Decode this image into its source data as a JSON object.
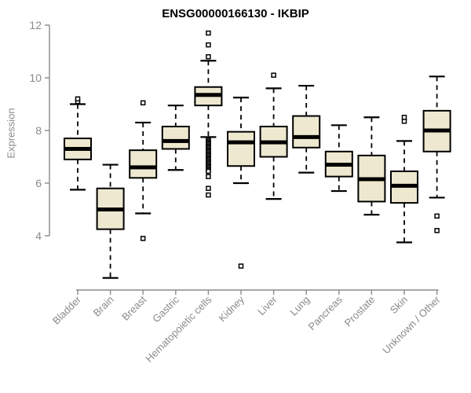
{
  "colors": {
    "box_fill": "#EDE8CF",
    "box_stroke": "#000000",
    "median": "#000000",
    "whisker": "#000000",
    "outlier_stroke": "#000000",
    "outlier_fill": "#ffffff",
    "axis": "#8a8a8a",
    "axis_text": "#8a8a8a",
    "title_text": "#000000"
  },
  "chart_data": {
    "type": "boxplot",
    "title": "ENSG00000166130 - IKBIP",
    "xlabel": "",
    "ylabel": "Expression",
    "ylim": [
      4,
      12
    ],
    "y_ticks": [
      4,
      6,
      8,
      10,
      12
    ],
    "grid": false,
    "categories": [
      "Bladder",
      "Brain",
      "Breast",
      "Gastric",
      "Hematopoietic cells",
      "Kidney",
      "Liver",
      "Lung",
      "Pancreas",
      "Prostate",
      "Skin",
      "Unknown / Other"
    ],
    "boxes": [
      {
        "category": "Bladder",
        "whisker_low": 5.75,
        "q1": 6.9,
        "median": 7.3,
        "q3": 7.7,
        "whisker_high": 9.0,
        "outliers": [
          9.1,
          9.2
        ]
      },
      {
        "category": "Brain",
        "whisker_low": 2.4,
        "q1": 4.25,
        "median": 5.0,
        "q3": 5.8,
        "whisker_high": 6.7,
        "outliers": []
      },
      {
        "category": "Breast",
        "whisker_low": 4.85,
        "q1": 6.2,
        "median": 6.6,
        "q3": 7.25,
        "whisker_high": 8.3,
        "outliers": [
          9.05,
          3.9
        ]
      },
      {
        "category": "Gastric",
        "whisker_low": 6.5,
        "q1": 7.3,
        "median": 7.6,
        "q3": 8.15,
        "whisker_high": 8.95,
        "outliers": []
      },
      {
        "category": "Hematopoietic cells",
        "whisker_low": 7.75,
        "q1": 8.95,
        "median": 9.35,
        "q3": 9.65,
        "whisker_high": 10.65,
        "outliers": [
          11.7,
          11.25,
          10.8,
          7.65,
          7.6,
          7.55,
          7.5,
          7.45,
          7.4,
          7.35,
          7.3,
          7.25,
          7.2,
          7.15,
          7.1,
          7.05,
          7.0,
          6.95,
          6.9,
          6.85,
          6.8,
          6.75,
          6.7,
          6.65,
          6.6,
          6.55,
          6.5,
          6.45,
          6.25,
          5.8,
          5.55
        ]
      },
      {
        "category": "Kidney",
        "whisker_low": 6.0,
        "q1": 6.65,
        "median": 7.55,
        "q3": 7.95,
        "whisker_high": 9.25,
        "outliers": [
          2.85
        ]
      },
      {
        "category": "Liver",
        "whisker_low": 5.4,
        "q1": 7.0,
        "median": 7.55,
        "q3": 8.15,
        "whisker_high": 9.6,
        "outliers": [
          10.1
        ]
      },
      {
        "category": "Lung",
        "whisker_low": 6.4,
        "q1": 7.35,
        "median": 7.75,
        "q3": 8.55,
        "whisker_high": 9.7,
        "outliers": []
      },
      {
        "category": "Pancreas",
        "whisker_low": 5.7,
        "q1": 6.25,
        "median": 6.7,
        "q3": 7.2,
        "whisker_high": 8.2,
        "outliers": []
      },
      {
        "category": "Prostate",
        "whisker_low": 4.8,
        "q1": 5.3,
        "median": 6.15,
        "q3": 7.05,
        "whisker_high": 8.5,
        "outliers": []
      },
      {
        "category": "Skin",
        "whisker_low": 3.75,
        "q1": 5.25,
        "median": 5.9,
        "q3": 6.45,
        "whisker_high": 7.6,
        "outliers": [
          8.5,
          8.35
        ]
      },
      {
        "category": "Unknown / Other",
        "whisker_low": 5.45,
        "q1": 7.2,
        "median": 8.0,
        "q3": 8.75,
        "whisker_high": 10.05,
        "outliers": [
          4.75,
          4.2
        ]
      }
    ]
  }
}
